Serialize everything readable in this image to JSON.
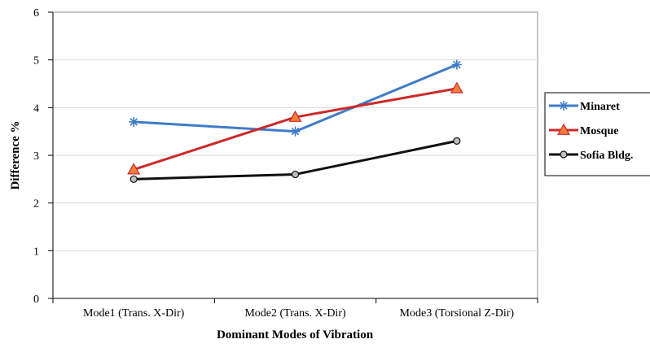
{
  "chart_data": {
    "type": "line",
    "title": "",
    "xlabel": "Dominant Modes of Vibration",
    "ylabel": "Difference %",
    "categories": [
      "Mode1 (Trans. X-Dir)",
      "Mode2 (Trans. X-Dir)",
      "Mode3 (Torsional Z-Dir)"
    ],
    "ylim": [
      0,
      6
    ],
    "yticks": [
      "0",
      "1",
      "2",
      "3",
      "4",
      "5",
      "6"
    ],
    "grid": "horizontal",
    "legend_position": "right",
    "series": [
      {
        "name": "Minaret",
        "values": [
          3.7,
          3.5,
          4.9
        ],
        "color": "#3f7bc8",
        "marker": "asterisk"
      },
      {
        "name": "Mosque",
        "values": [
          2.7,
          3.8,
          4.4
        ],
        "color": "#cc2a2a",
        "marker_fill": "#f07f3a",
        "marker": "triangle"
      },
      {
        "name": "Sofia Bldg.",
        "values": [
          2.5,
          2.6,
          3.3
        ],
        "color": "#111111",
        "marker_fill": "#bfbfbf",
        "marker": "circle"
      }
    ]
  }
}
